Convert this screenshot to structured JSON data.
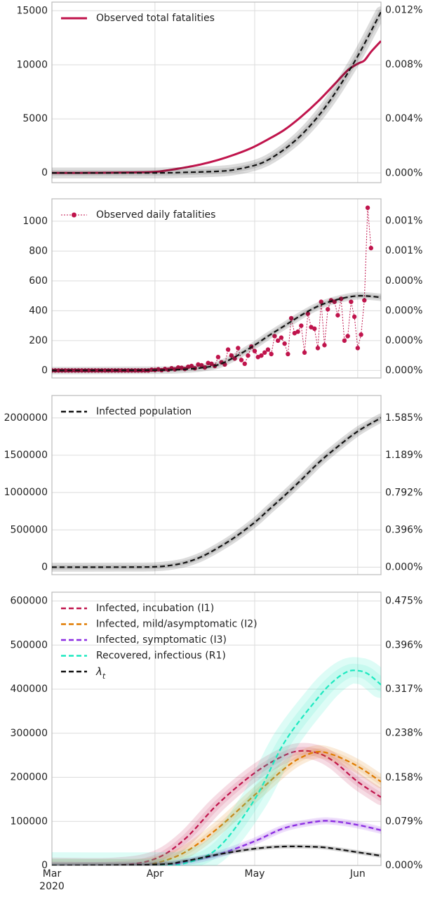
{
  "x_axis": {
    "months": [
      "Mar",
      "Apr",
      "May",
      "Jun"
    ],
    "year": "2020",
    "ticks": [
      "2020-03-01",
      "2020-04-01",
      "2020-05-01",
      "2020-06-01"
    ],
    "range": [
      "2020-03-01",
      "2020-06-08"
    ]
  },
  "colors": {
    "crimson": "#c0144c",
    "black": "#111111",
    "orange": "#e07b00",
    "purple": "#8a2be2",
    "teal": "#1de9c0",
    "grid": "#dcdcdc",
    "frame": "#bbbbbb"
  },
  "chart_data": [
    {
      "type": "line",
      "legend": "Observed total fatalities",
      "legend_position": "top-left",
      "grid": true,
      "ylim": [
        -900,
        15800
      ],
      "yticks": [
        0,
        5000,
        10000,
        15000
      ],
      "ytick_labels": [
        "0",
        "5000",
        "10000",
        "15000"
      ],
      "right_ylim": [
        -0.0007,
        0.0126
      ],
      "right_ticks": [
        0.0,
        0.004,
        0.008,
        0.012
      ],
      "right_tick_labels": [
        "0.000%",
        "0.004%",
        "0.008%",
        "0.012%"
      ],
      "series": [
        {
          "name": "Observed total fatalities",
          "style": "solid",
          "color": "crimson",
          "x": [
            "2020-03-01",
            "2020-03-15",
            "2020-03-25",
            "2020-04-01",
            "2020-04-05",
            "2020-04-10",
            "2020-04-15",
            "2020-04-20",
            "2020-04-25",
            "2020-04-30",
            "2020-05-05",
            "2020-05-10",
            "2020-05-15",
            "2020-05-20",
            "2020-05-25",
            "2020-05-29",
            "2020-06-01",
            "2020-06-03",
            "2020-06-05",
            "2020-06-08"
          ],
          "y": [
            0,
            10,
            40,
            100,
            250,
            500,
            800,
            1200,
            1700,
            2300,
            3100,
            4000,
            5200,
            6600,
            8200,
            9500,
            10100,
            10400,
            11200,
            12200
          ]
        },
        {
          "name": "",
          "style": "dashed",
          "color": "black",
          "x": [
            "2020-03-01",
            "2020-04-01",
            "2020-04-10",
            "2020-04-20",
            "2020-04-25",
            "2020-05-01",
            "2020-05-05",
            "2020-05-10",
            "2020-05-15",
            "2020-05-20",
            "2020-05-25",
            "2020-06-01",
            "2020-06-08"
          ],
          "y": [
            0,
            0,
            50,
            150,
            300,
            700,
            1200,
            2200,
            3500,
            5200,
            7300,
            10800,
            14900
          ],
          "band": 500
        }
      ]
    },
    {
      "type": "line",
      "legend": "Observed daily fatalities",
      "legend_position": "top-left",
      "grid": true,
      "ylim": [
        -50,
        1150
      ],
      "yticks": [
        0,
        200,
        400,
        600,
        800,
        1000
      ],
      "ytick_labels": [
        "0",
        "200",
        "400",
        "600",
        "800",
        "1000"
      ],
      "right_ylim": [
        -5.7e-05,
        0.00131
      ],
      "right_ticks": [
        0.0,
        0.000228,
        0.000456,
        0.000684,
        0.000912,
        0.00114
      ],
      "right_tick_labels": [
        "0.000%",
        "0.000%",
        "0.000%",
        "0.000%",
        "0.001%",
        "0.001%"
      ],
      "series": [
        {
          "name": "Observed daily fatalities",
          "style": "dotted-markers",
          "color": "crimson",
          "x_start": "2020-03-01",
          "y": [
            0,
            0,
            0,
            0,
            0,
            0,
            0,
            0,
            0,
            0,
            0,
            0,
            0,
            0,
            0,
            0,
            0,
            0,
            0,
            0,
            0,
            0,
            0,
            0,
            0,
            0,
            0,
            0,
            0,
            0,
            5,
            3,
            8,
            2,
            10,
            5,
            15,
            8,
            20,
            18,
            10,
            25,
            30,
            15,
            40,
            35,
            20,
            50,
            45,
            30,
            90,
            55,
            40,
            140,
            100,
            80,
            150,
            70,
            45,
            100,
            160,
            130,
            90,
            100,
            120,
            140,
            110,
            230,
            200,
            220,
            180,
            110,
            350,
            250,
            260,
            300,
            120,
            380,
            290,
            280,
            150,
            460,
            170,
            410,
            470,
            460,
            370,
            480,
            200,
            230,
            460,
            360,
            150,
            240,
            470,
            1090,
            820
          ],
          "markers": true
        },
        {
          "name": "",
          "style": "dashed",
          "color": "black",
          "x": [
            "2020-03-01",
            "2020-04-01",
            "2020-04-10",
            "2020-04-15",
            "2020-04-20",
            "2020-04-25",
            "2020-05-01",
            "2020-05-05",
            "2020-05-10",
            "2020-05-15",
            "2020-05-20",
            "2020-05-25",
            "2020-06-01",
            "2020-06-08"
          ],
          "y": [
            0,
            2,
            8,
            18,
            38,
            90,
            170,
            230,
            300,
            370,
            430,
            470,
            500,
            490
          ],
          "band": 25
        }
      ]
    },
    {
      "type": "line",
      "legend": "Infected population",
      "legend_position": "top-left",
      "grid": true,
      "ylim": [
        -100000,
        2300000
      ],
      "yticks": [
        0,
        500000,
        1000000,
        1500000,
        2000000
      ],
      "ytick_labels": [
        "0",
        "500000",
        "1000000",
        "1500000",
        "2000000"
      ],
      "right_ylim": [
        -0.00079,
        0.01825
      ],
      "right_ticks": [
        0.0,
        0.00396,
        0.00792,
        0.01189,
        0.01585
      ],
      "right_tick_labels": [
        "0.000%",
        "0.396%",
        "0.792%",
        "1.189%",
        "1.585%"
      ],
      "series": [
        {
          "name": "Infected population",
          "style": "dashed",
          "color": "black",
          "x": [
            "2020-03-01",
            "2020-03-25",
            "2020-04-01",
            "2020-04-05",
            "2020-04-10",
            "2020-04-15",
            "2020-04-20",
            "2020-04-25",
            "2020-05-01",
            "2020-05-05",
            "2020-05-10",
            "2020-05-15",
            "2020-05-20",
            "2020-05-25",
            "2020-06-01",
            "2020-06-08"
          ],
          "y": [
            0,
            1000,
            5000,
            20000,
            60000,
            140000,
            260000,
            400000,
            600000,
            760000,
            960000,
            1170000,
            1390000,
            1580000,
            1820000,
            2000000
          ],
          "band": 60000
        }
      ]
    },
    {
      "type": "line",
      "legend_position": "top-left",
      "grid": true,
      "ylim": [
        0,
        620000
      ],
      "yticks": [
        0,
        100000,
        200000,
        300000,
        400000,
        500000,
        600000
      ],
      "ytick_labels": [
        "0",
        "100000",
        "200000",
        "300000",
        "400000",
        "500000",
        "600000"
      ],
      "right_ylim": [
        0,
        0.00491
      ],
      "right_ticks": [
        0.0,
        0.00079,
        0.00158,
        0.00238,
        0.00317,
        0.00396,
        0.00475
      ],
      "right_tick_labels": [
        "0.000%",
        "0.079%",
        "0.158%",
        "0.238%",
        "0.317%",
        "0.396%",
        "0.475%"
      ],
      "series": [
        {
          "name": "Infected, incubation (I1)",
          "style": "dashed",
          "color": "crimson",
          "x": [
            "2020-03-01",
            "2020-03-20",
            "2020-04-01",
            "2020-04-10",
            "2020-04-20",
            "2020-05-01",
            "2020-05-10",
            "2020-05-15",
            "2020-05-20",
            "2020-05-25",
            "2020-06-01",
            "2020-06-08"
          ],
          "y": [
            0,
            0,
            15000,
            60000,
            140000,
            210000,
            250000,
            260000,
            255000,
            235000,
            190000,
            155000
          ],
          "band": 18000
        },
        {
          "name": "Infected, mild/asymptomatic (I2)",
          "style": "dashed",
          "color": "orange",
          "x": [
            "2020-03-01",
            "2020-03-25",
            "2020-04-01",
            "2020-04-10",
            "2020-04-20",
            "2020-05-01",
            "2020-05-10",
            "2020-05-15",
            "2020-05-20",
            "2020-05-25",
            "2020-06-01",
            "2020-06-08"
          ],
          "y": [
            0,
            0,
            5000,
            30000,
            85000,
            160000,
            220000,
            245000,
            258000,
            250000,
            225000,
            190000
          ],
          "band": 15000
        },
        {
          "name": "Infected, symptomatic (I3)",
          "style": "dashed",
          "color": "purple",
          "x": [
            "2020-03-01",
            "2020-04-01",
            "2020-04-10",
            "2020-04-20",
            "2020-05-01",
            "2020-05-10",
            "2020-05-20",
            "2020-05-25",
            "2020-06-01",
            "2020-06-08"
          ],
          "y": [
            0,
            1000,
            8000,
            25000,
            55000,
            85000,
            100000,
            100000,
            92000,
            80000
          ],
          "band": 8000
        },
        {
          "name": "Recovered, infectious (R1)",
          "style": "dashed",
          "color": "teal",
          "x": [
            "2020-03-01",
            "2020-04-01",
            "2020-04-10",
            "2020-04-20",
            "2020-05-01",
            "2020-05-10",
            "2020-05-20",
            "2020-05-25",
            "2020-05-29",
            "2020-06-01",
            "2020-06-04",
            "2020-06-08"
          ],
          "y": [
            0,
            0,
            5000,
            40000,
            150000,
            280000,
            380000,
            420000,
            440000,
            442000,
            435000,
            410000
          ],
          "band": 30000
        },
        {
          "name": "λ_t",
          "style": "dashed",
          "color": "black",
          "x": [
            "2020-03-01",
            "2020-04-01",
            "2020-04-10",
            "2020-04-20",
            "2020-05-01",
            "2020-05-10",
            "2020-05-20",
            "2020-05-25",
            "2020-06-01",
            "2020-06-08"
          ],
          "y": [
            0,
            2000,
            10000,
            25000,
            38000,
            43000,
            42000,
            38000,
            30000,
            22000
          ],
          "band": 3000
        }
      ]
    }
  ]
}
